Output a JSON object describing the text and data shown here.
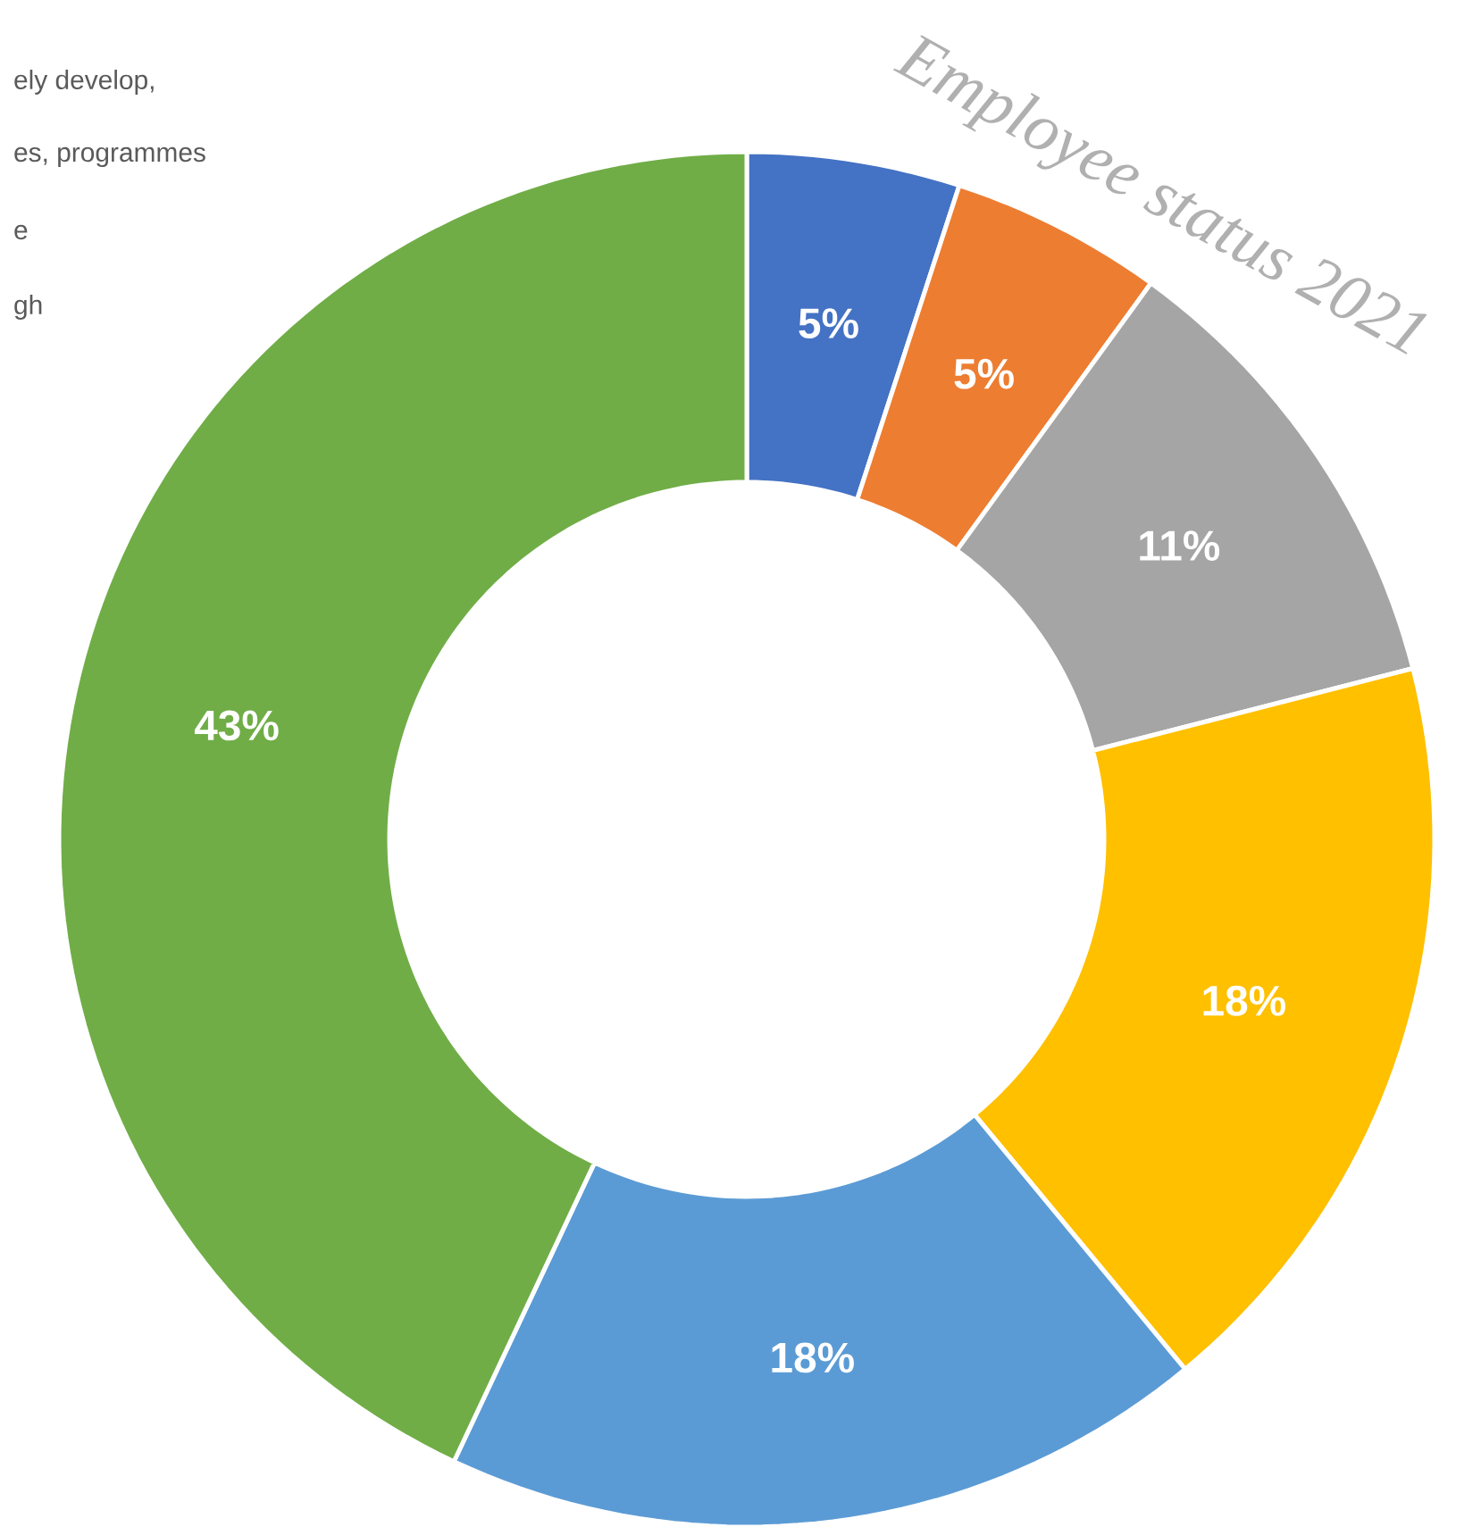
{
  "chart_data": {
    "type": "donut",
    "title": "Employee status 2021",
    "categories": [
      null,
      null,
      null,
      null,
      null,
      null
    ],
    "values": [
      5,
      5,
      11,
      18,
      18,
      43
    ],
    "colors": [
      "#4472c4",
      "#ed7d31",
      "#a5a5a5",
      "#ffc000",
      "#5b9bd5",
      "#70ad47"
    ],
    "value_labels": [
      "5%",
      "5%",
      "11%",
      "18%",
      "18%",
      "43%"
    ],
    "annotations": [
      "ely develop,",
      "es, programmes",
      "e",
      "gh"
    ]
  }
}
